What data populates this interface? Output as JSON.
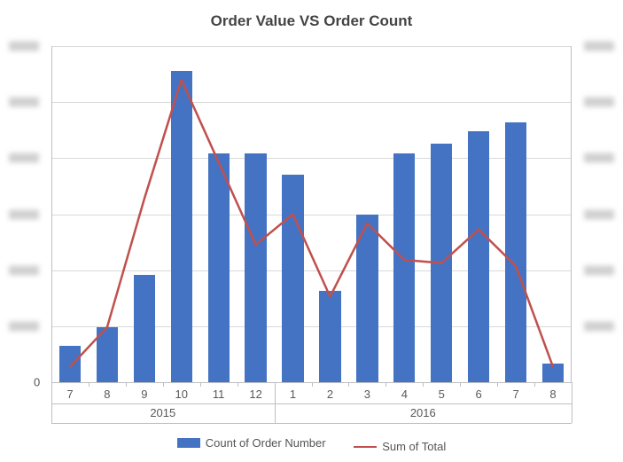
{
  "chart": {
    "type": "bar+line",
    "title": "Order Value VS Order Count",
    "title_fontsize": 17,
    "title_color": "#444444",
    "background_color": "#ffffff",
    "plot_border_color": "#bfbfbf",
    "grid_color": "#d9d9d9",
    "label_color": "#595959",
    "label_fontsize": 13,
    "bar_color": "#4473c4",
    "line_color": "#c0504d",
    "line_width": 2.5,
    "marker_style": "none",
    "bar_width_ratio": 0.58,
    "left_axis": {
      "min": 0,
      "max": 110,
      "tick_count": 7,
      "labels_blurred": true
    },
    "right_axis": {
      "min": 0,
      "max": 110,
      "tick_count": 7,
      "labels_blurred": true
    },
    "categories": [
      "7",
      "8",
      "9",
      "10",
      "11",
      "12",
      "1",
      "2",
      "3",
      "4",
      "5",
      "6",
      "7",
      "8"
    ],
    "groups": [
      {
        "label": "2015",
        "span": [
          0,
          5
        ]
      },
      {
        "label": "2016",
        "span": [
          6,
          13
        ]
      }
    ],
    "series_bar": {
      "name": "Count of Order Number",
      "values": [
        12,
        18,
        35,
        102,
        75,
        75,
        68,
        30,
        55,
        75,
        78,
        82,
        85,
        6
      ]
    },
    "series_line": {
      "name": "Sum of Total",
      "values": [
        5,
        18,
        60,
        99,
        72,
        45,
        55,
        28,
        52,
        40,
        39,
        50,
        38,
        5
      ]
    },
    "group_row_height": 22
  }
}
